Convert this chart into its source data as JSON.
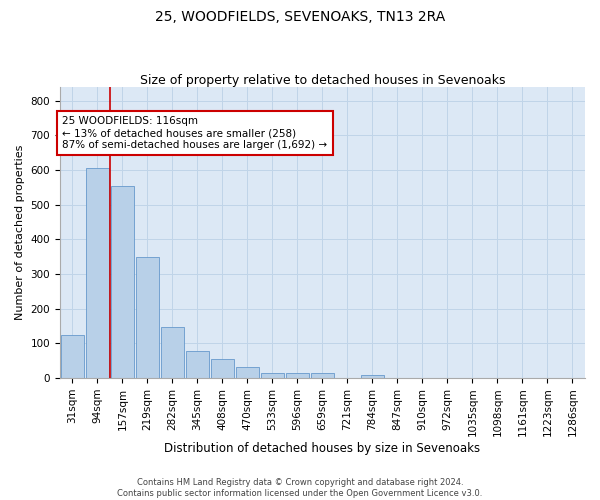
{
  "title": "25, WOODFIELDS, SEVENOAKS, TN13 2RA",
  "subtitle": "Size of property relative to detached houses in Sevenoaks",
  "xlabel": "Distribution of detached houses by size in Sevenoaks",
  "ylabel": "Number of detached properties",
  "categories": [
    "31sqm",
    "94sqm",
    "157sqm",
    "219sqm",
    "282sqm",
    "345sqm",
    "408sqm",
    "470sqm",
    "533sqm",
    "596sqm",
    "659sqm",
    "721sqm",
    "784sqm",
    "847sqm",
    "910sqm",
    "972sqm",
    "1035sqm",
    "1098sqm",
    "1161sqm",
    "1223sqm",
    "1286sqm"
  ],
  "values": [
    125,
    605,
    555,
    348,
    148,
    77,
    55,
    33,
    15,
    14,
    13,
    0,
    8,
    0,
    0,
    0,
    0,
    0,
    0,
    0,
    0
  ],
  "bar_color": "#b8d0e8",
  "bar_edge_color": "#6699cc",
  "bar_edge_width": 0.6,
  "grid_color": "#c0d4e8",
  "bg_color": "#dce8f5",
  "red_line_x": 1.5,
  "annotation_text": "25 WOODFIELDS: 116sqm\n← 13% of detached houses are smaller (258)\n87% of semi-detached houses are larger (1,692) →",
  "annotation_box_color": "white",
  "annotation_border_color": "#cc0000",
  "footer_line1": "Contains HM Land Registry data © Crown copyright and database right 2024.",
  "footer_line2": "Contains public sector information licensed under the Open Government Licence v3.0.",
  "ylim": [
    0,
    840
  ],
  "yticks": [
    0,
    100,
    200,
    300,
    400,
    500,
    600,
    700,
    800
  ],
  "title_fontsize": 10,
  "subtitle_fontsize": 9,
  "xlabel_fontsize": 8.5,
  "ylabel_fontsize": 8,
  "tick_fontsize": 7.5,
  "footer_fontsize": 6,
  "annot_fontsize": 7.5
}
